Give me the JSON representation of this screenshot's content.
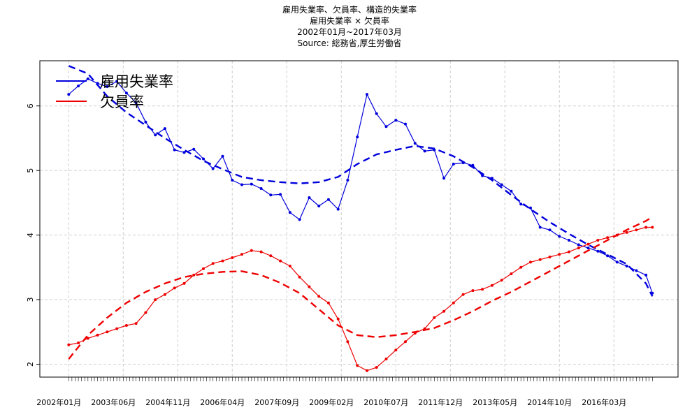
{
  "titles": {
    "line1": "雇用失業率、欠員率、構造的失業率",
    "line2": "雇用失業率 × 欠員率",
    "line3": "2002年01月~2017年03月",
    "line4": "Source: 総務省,厚生労働省"
  },
  "chart_data": {
    "type": "line",
    "title": "雇用失業率、欠員率、構造的失業率",
    "subtitle": "雇用失業率 × 欠員率",
    "period": "2002年01月~2017年03月",
    "source": "Source: 総務省,厚生労働省",
    "xlabel": "",
    "ylabel": "",
    "start_month": "2002-01",
    "end_month": "2017-03",
    "xlim": [
      "2001-04",
      "2017-11"
    ],
    "ylim": [
      1.8,
      6.7
    ],
    "y_ticks": [
      2,
      3,
      4,
      5,
      6
    ],
    "x_tick_labels": [
      "2002年01月",
      "2003年06月",
      "2004年11月",
      "2006年04月",
      "2007年09月",
      "2009年02月",
      "2010年07月",
      "2011年12月",
      "2013年05月",
      "2014年10月",
      "2016年03月"
    ],
    "grid": true,
    "legend": {
      "position": "top-left",
      "entries": [
        "雇用失業率",
        "欠員率"
      ]
    },
    "colors": {
      "unemployment": "#0000dd",
      "vacancy": "#ee0000"
    },
    "series": [
      {
        "name": "雇用失業率",
        "color": "#0000dd",
        "style": "line-with-points",
        "x": [
          "2002-01",
          "2002-04",
          "2002-07",
          "2002-10",
          "2003-01",
          "2003-04",
          "2003-07",
          "2003-10",
          "2004-01",
          "2004-04",
          "2004-07",
          "2004-10",
          "2005-01",
          "2005-04",
          "2005-07",
          "2005-10",
          "2006-01",
          "2006-04",
          "2006-07",
          "2006-10",
          "2007-01",
          "2007-04",
          "2007-07",
          "2007-10",
          "2008-01",
          "2008-04",
          "2008-07",
          "2008-10",
          "2009-01",
          "2009-04",
          "2009-07",
          "2009-10",
          "2010-01",
          "2010-04",
          "2010-07",
          "2010-10",
          "2011-01",
          "2011-04",
          "2011-07",
          "2011-10",
          "2012-01",
          "2012-04",
          "2012-07",
          "2012-10",
          "2013-01",
          "2013-04",
          "2013-07",
          "2013-10",
          "2014-01",
          "2014-04",
          "2014-07",
          "2014-10",
          "2015-01",
          "2015-04",
          "2015-07",
          "2015-10",
          "2016-01",
          "2016-04",
          "2016-07",
          "2016-10",
          "2017-01",
          "2017-03"
        ],
        "values": [
          6.18,
          6.31,
          6.42,
          6.35,
          6.3,
          6.38,
          6.2,
          6.05,
          5.75,
          5.55,
          5.65,
          5.32,
          5.28,
          5.33,
          5.18,
          5.03,
          5.22,
          4.85,
          4.78,
          4.79,
          4.72,
          4.62,
          4.63,
          4.35,
          4.24,
          4.58,
          4.45,
          4.55,
          4.4,
          4.85,
          5.52,
          6.18,
          5.88,
          5.68,
          5.78,
          5.72,
          5.42,
          5.3,
          5.32,
          4.88,
          5.1,
          5.12,
          5.08,
          4.92,
          4.88,
          4.78,
          4.68,
          4.48,
          4.42,
          4.12,
          4.08,
          3.98,
          3.92,
          3.85,
          3.8,
          3.75,
          3.68,
          3.58,
          3.52,
          3.45,
          3.38,
          3.1
        ]
      },
      {
        "name": "欠員率",
        "color": "#ee0000",
        "style": "line-with-points",
        "x": [
          "2002-01",
          "2002-04",
          "2002-07",
          "2002-10",
          "2003-01",
          "2003-04",
          "2003-07",
          "2003-10",
          "2004-01",
          "2004-04",
          "2004-07",
          "2004-10",
          "2005-01",
          "2005-04",
          "2005-07",
          "2005-10",
          "2006-01",
          "2006-04",
          "2006-07",
          "2006-10",
          "2007-01",
          "2007-04",
          "2007-07",
          "2007-10",
          "2008-01",
          "2008-04",
          "2008-07",
          "2008-10",
          "2009-01",
          "2009-04",
          "2009-07",
          "2009-10",
          "2010-01",
          "2010-04",
          "2010-07",
          "2010-10",
          "2011-01",
          "2011-04",
          "2011-07",
          "2011-10",
          "2012-01",
          "2012-04",
          "2012-07",
          "2012-10",
          "2013-01",
          "2013-04",
          "2013-07",
          "2013-10",
          "2014-01",
          "2014-04",
          "2014-07",
          "2014-10",
          "2015-01",
          "2015-04",
          "2015-07",
          "2015-10",
          "2016-01",
          "2016-04",
          "2016-07",
          "2016-10",
          "2017-01",
          "2017-03"
        ],
        "values": [
          2.3,
          2.33,
          2.4,
          2.45,
          2.5,
          2.55,
          2.6,
          2.63,
          2.8,
          3.0,
          3.08,
          3.18,
          3.25,
          3.38,
          3.48,
          3.56,
          3.6,
          3.65,
          3.7,
          3.76,
          3.74,
          3.68,
          3.6,
          3.52,
          3.35,
          3.2,
          3.05,
          2.95,
          2.7,
          2.35,
          1.98,
          1.9,
          1.95,
          2.08,
          2.22,
          2.35,
          2.48,
          2.55,
          2.72,
          2.82,
          2.95,
          3.08,
          3.14,
          3.16,
          3.22,
          3.3,
          3.4,
          3.5,
          3.58,
          3.62,
          3.66,
          3.7,
          3.74,
          3.8,
          3.86,
          3.92,
          3.96,
          4.0,
          4.04,
          4.08,
          4.12,
          4.12
        ]
      },
      {
        "name": "",
        "color": "#0000dd",
        "style": "dashed",
        "x": [
          "2002-01",
          "2002-07",
          "2003-01",
          "2003-07",
          "2004-01",
          "2004-07",
          "2005-01",
          "2005-07",
          "2006-01",
          "2006-07",
          "2007-01",
          "2007-07",
          "2008-01",
          "2008-07",
          "2009-01",
          "2009-07",
          "2010-01",
          "2010-07",
          "2011-01",
          "2011-07",
          "2012-01",
          "2012-07",
          "2013-01",
          "2013-07",
          "2014-01",
          "2014-07",
          "2015-01",
          "2015-07",
          "2016-01",
          "2016-07",
          "2017-01",
          "2017-03"
        ],
        "values": [
          6.62,
          6.5,
          6.15,
          5.9,
          5.7,
          5.5,
          5.32,
          5.15,
          5.02,
          4.9,
          4.85,
          4.82,
          4.8,
          4.82,
          4.9,
          5.1,
          5.25,
          5.32,
          5.38,
          5.34,
          5.22,
          5.05,
          4.85,
          4.62,
          4.4,
          4.2,
          4.02,
          3.85,
          3.7,
          3.55,
          3.25,
          3.05
        ]
      },
      {
        "name": "",
        "color": "#ee0000",
        "style": "dashed",
        "x": [
          "2002-01",
          "2002-07",
          "2003-01",
          "2003-07",
          "2004-01",
          "2004-07",
          "2005-01",
          "2005-07",
          "2006-01",
          "2006-07",
          "2007-01",
          "2007-07",
          "2008-01",
          "2008-07",
          "2009-01",
          "2009-07",
          "2010-01",
          "2010-07",
          "2011-01",
          "2011-07",
          "2012-01",
          "2012-07",
          "2013-01",
          "2013-07",
          "2014-01",
          "2014-07",
          "2015-01",
          "2015-07",
          "2016-01",
          "2016-07",
          "2017-01",
          "2017-03"
        ],
        "values": [
          2.08,
          2.45,
          2.72,
          2.95,
          3.12,
          3.25,
          3.35,
          3.4,
          3.43,
          3.44,
          3.38,
          3.26,
          3.1,
          2.85,
          2.6,
          2.45,
          2.42,
          2.45,
          2.5,
          2.56,
          2.68,
          2.82,
          2.98,
          3.12,
          3.28,
          3.44,
          3.6,
          3.76,
          3.92,
          4.08,
          4.22,
          4.28
        ]
      }
    ]
  }
}
